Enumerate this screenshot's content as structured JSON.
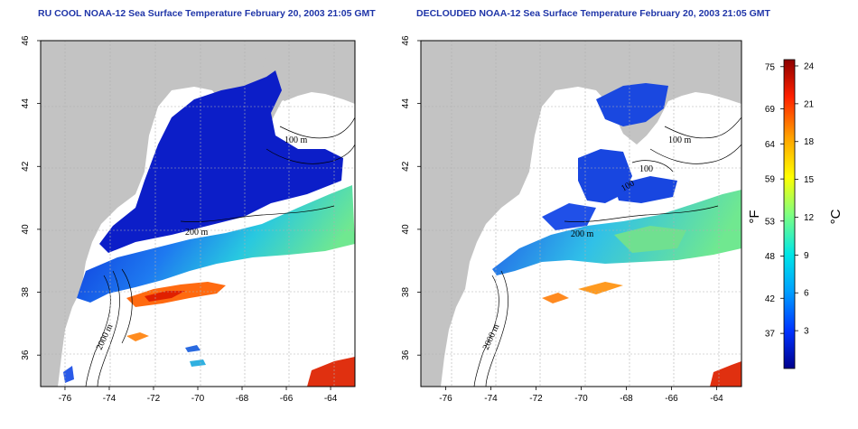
{
  "panels": [
    {
      "title": "RU COOL NOAA-12 Sea Surface Temperature February 20, 2003 21:05 GMT",
      "contour_labels": [
        "100 m",
        "200 m",
        "2000 m"
      ]
    },
    {
      "title": "DECLOUDED NOAA-12 Sea Surface Temperature February 20, 2003 21:05 GMT",
      "contour_labels": [
        "100 m",
        "200 m",
        "2000 m",
        "100",
        "100"
      ]
    }
  ],
  "axes": {
    "x_ticks": [
      "-76",
      "-74",
      "-72",
      "-70",
      "-68",
      "-66",
      "-64"
    ],
    "y_ticks": [
      "46",
      "44",
      "42",
      "40",
      "38",
      "36"
    ]
  },
  "colorbar": {
    "fahrenheit_ticks": [
      "75",
      "69",
      "64",
      "59",
      "53",
      "48",
      "42",
      "37"
    ],
    "celsius_ticks": [
      "24",
      "21",
      "18",
      "15",
      "12",
      "9",
      "6",
      "3"
    ],
    "fahrenheit_unit": "°F",
    "celsius_unit": "°C",
    "colors": [
      "#00008c",
      "#0032ff",
      "#00a0ff",
      "#00e6e6",
      "#80ff80",
      "#ffff00",
      "#ffa000",
      "#ff2000",
      "#8c0000"
    ]
  },
  "colors": {
    "land": "#c3c3c3",
    "title": "#1f35a8"
  }
}
